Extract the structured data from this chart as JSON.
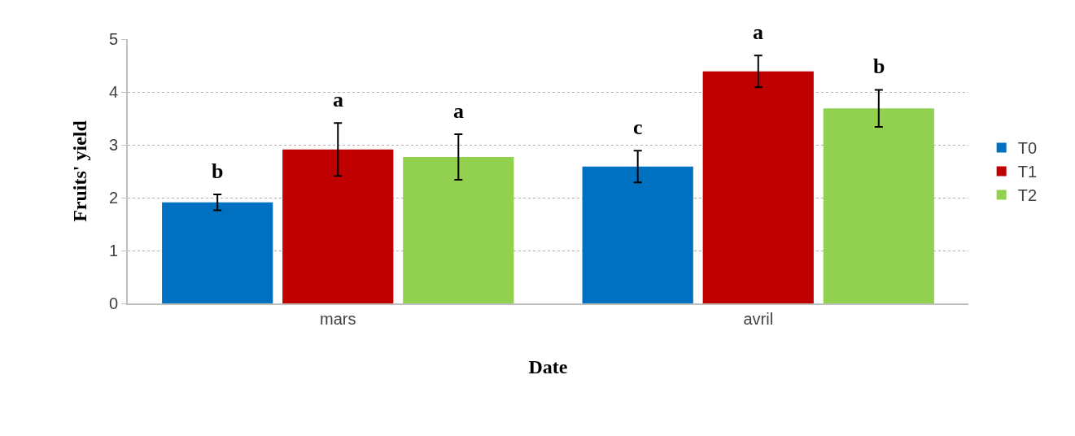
{
  "chart_data": {
    "type": "bar",
    "xlabel": "Date",
    "ylabel": "Fruits' yield",
    "categories": [
      "mars",
      "avril"
    ],
    "series": [
      {
        "name": "T0",
        "color": "#0070c0",
        "values": [
          1.91,
          2.59
        ],
        "errors": [
          0.15,
          0.3
        ]
      },
      {
        "name": "T1",
        "color": "#c00000",
        "values": [
          2.91,
          4.39
        ],
        "errors": [
          0.5,
          0.3
        ]
      },
      {
        "name": "T2",
        "color": "#92d050",
        "values": [
          2.77,
          3.69
        ],
        "errors": [
          0.43,
          0.35
        ]
      }
    ],
    "ylim": [
      0,
      5
    ],
    "yticks": [
      0,
      1,
      2,
      3,
      4,
      5
    ],
    "grid": "y",
    "legend": "right",
    "annotations": [
      "b",
      "a",
      "a",
      "c",
      "a",
      "b"
    ]
  }
}
